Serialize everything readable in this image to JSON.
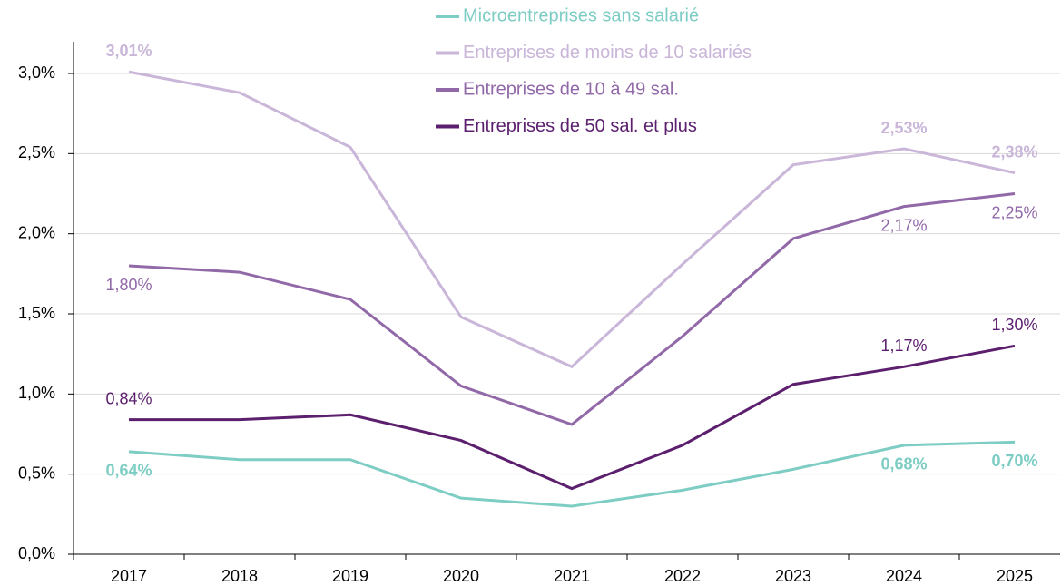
{
  "chart_data": {
    "type": "line",
    "categories": [
      "2017",
      "2018",
      "2019",
      "2020",
      "2021",
      "2022",
      "2023",
      "2024",
      "2025"
    ],
    "series": [
      {
        "name": "Microentreprises sans salarié",
        "color": "#7ecdc4",
        "values": [
          0.64,
          0.59,
          0.59,
          0.35,
          0.3,
          0.4,
          0.53,
          0.68,
          0.7
        ],
        "value_labels": [
          "0,64%",
          null,
          null,
          null,
          null,
          null,
          null,
          "0,68%",
          "0,70%"
        ]
      },
      {
        "name": "Entreprises de moins de 10 salariés",
        "color": "#c9b6d8",
        "values": [
          3.01,
          2.88,
          2.54,
          1.48,
          1.17,
          1.81,
          2.43,
          2.53,
          2.38
        ],
        "value_labels": [
          "3,01%",
          null,
          null,
          null,
          null,
          null,
          null,
          "2,53%",
          "2,38%"
        ]
      },
      {
        "name": "Entreprises de 10 à 49 sal.",
        "color": "#9269a8",
        "values": [
          1.8,
          1.76,
          1.59,
          1.05,
          0.81,
          1.36,
          1.97,
          2.17,
          2.25
        ],
        "value_labels": [
          "1,80%",
          null,
          null,
          null,
          null,
          null,
          null,
          "2,17%",
          "2,25%"
        ]
      },
      {
        "name": "Entreprises de 50 sal. et plus",
        "color": "#5b1f6e",
        "values": [
          0.84,
          0.84,
          0.87,
          0.71,
          0.41,
          0.68,
          1.06,
          1.17,
          1.3
        ],
        "value_labels": [
          "0,84%",
          null,
          null,
          null,
          null,
          null,
          null,
          "1,17%",
          "1,30%"
        ]
      }
    ],
    "ylim": [
      0,
      3.0
    ],
    "yticks": [
      {
        "value": 0,
        "label": "0,0%"
      },
      {
        "value": 0.5,
        "label": "0,5%"
      },
      {
        "value": 1.0,
        "label": "1,0%"
      },
      {
        "value": 1.5,
        "label": "1,5%"
      },
      {
        "value": 2.0,
        "label": "2,0%"
      },
      {
        "value": 2.5,
        "label": "2,5%"
      },
      {
        "value": 3.0,
        "label": "3,0%"
      }
    ],
    "grid": true
  }
}
